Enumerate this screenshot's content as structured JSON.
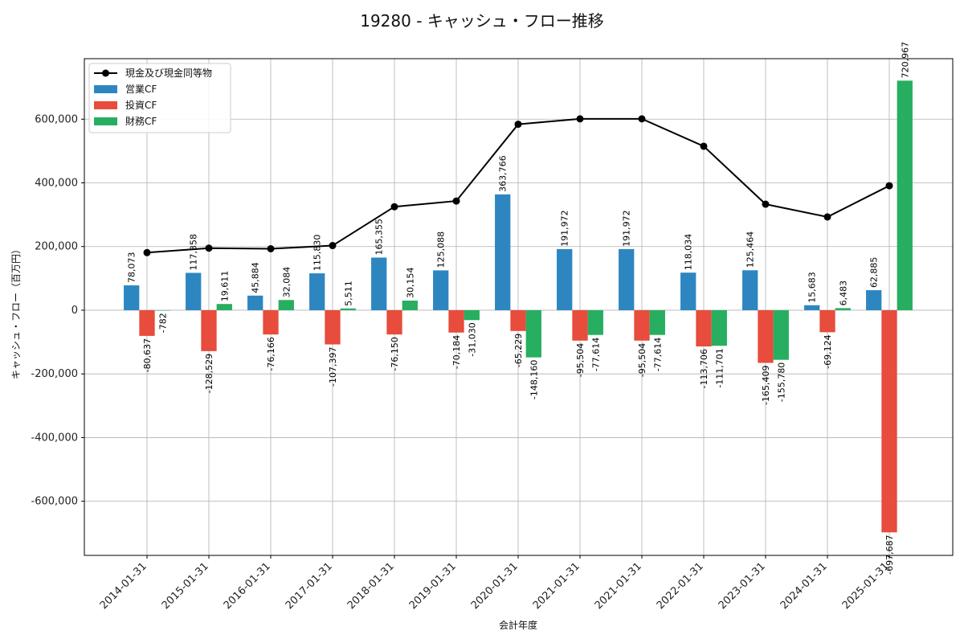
{
  "chart_data": {
    "type": "bar",
    "title": "19280 - キャッシュ・フロー推移",
    "xlabel": "会計年度",
    "ylabel": "キャッシュ・フロー（百万円）",
    "categories": [
      "2014-01-31",
      "2015-01-31",
      "2016-01-31",
      "2017-01-31",
      "2018-01-31",
      "2019-01-31",
      "2020-01-31",
      "2021-01-31",
      "2021-01-31",
      "2022-01-31",
      "2023-01-31",
      "2024-01-31",
      "2025-01-31"
    ],
    "ylim": [
      -770000,
      790000
    ],
    "yticks": [
      -600000,
      -400000,
      -200000,
      0,
      200000,
      400000,
      600000
    ],
    "ytick_labels": [
      "-600,000",
      "-400,000",
      "-200,000",
      "0",
      "200,000",
      "400,000",
      "600,000"
    ],
    "grid": true,
    "legend_position": "top-left",
    "series": [
      {
        "name": "営業CF",
        "kind": "bar",
        "color": "#2e86c1",
        "values": [
          78073,
          117358,
          45884,
          115830,
          165355,
          125088,
          363766,
          191972,
          191972,
          118034,
          125464,
          15683,
          62885
        ],
        "labels": [
          "78,073",
          "117,358",
          "45,884",
          "115,830",
          "165,355",
          "125,088",
          "363,766",
          "191,972",
          "191,972",
          "118,034",
          "125,464",
          "15,683",
          "62,885"
        ]
      },
      {
        "name": "投資CF",
        "kind": "bar",
        "color": "#e74c3c",
        "values": [
          -80637,
          -128529,
          -76166,
          -107397,
          -76150,
          -70184,
          -65229,
          -95504,
          -95504,
          -113706,
          -165409,
          -69124,
          -697687
        ],
        "labels": [
          "-80,637",
          "-128,529",
          "-76,166",
          "-107,397",
          "-76,150",
          "-70,184",
          "-65,229",
          "-95,504",
          "-95,504",
          "-113,706",
          "-165,409",
          "-69,124",
          "-697,687"
        ]
      },
      {
        "name": "財務CF",
        "kind": "bar",
        "color": "#27ae60",
        "values": [
          -782,
          19611,
          32084,
          5511,
          30154,
          -31030,
          -148160,
          -77614,
          -77614,
          -111701,
          -155780,
          6483,
          720967
        ],
        "labels": [
          "-782",
          "19,611",
          "32,084",
          "5,511",
          "30,154",
          "-31,030",
          "-148,160",
          "-77,614",
          "-77,614",
          "-111,701",
          "-155,780",
          "6,483",
          "720,967"
        ]
      },
      {
        "name": "現金及び現金同等物",
        "kind": "line",
        "color": "#000000",
        "values": [
          181000,
          195000,
          193000,
          203000,
          325000,
          343000,
          584000,
          601000,
          601000,
          515000,
          333000,
          293000,
          391000
        ]
      }
    ]
  }
}
